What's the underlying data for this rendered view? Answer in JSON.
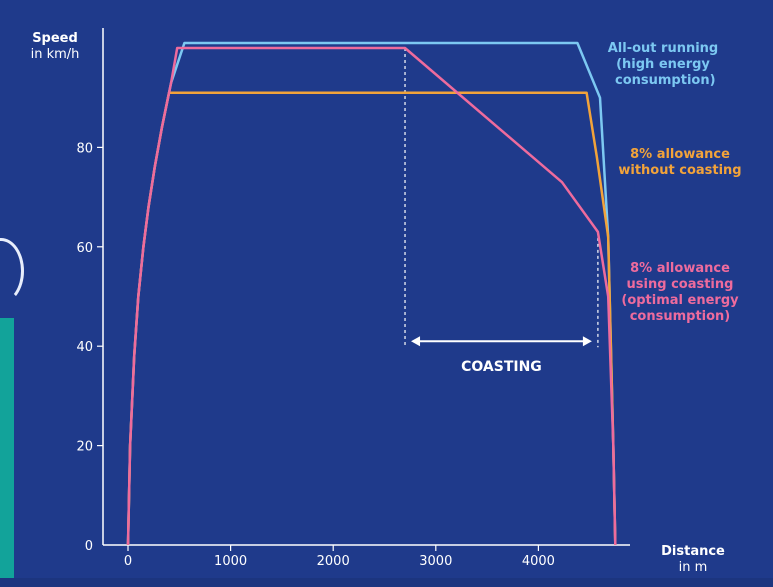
{
  "chart_data": {
    "type": "line",
    "xlabel": {
      "title": "Distance",
      "unit": "in m"
    },
    "ylabel": {
      "title": "Speed",
      "unit": "in km/h"
    },
    "xlim": [
      0,
      4800
    ],
    "ylim": [
      0,
      103
    ],
    "xticks": [
      0,
      1000,
      2000,
      3000,
      4000
    ],
    "yticks": [
      20,
      40,
      60,
      80
    ],
    "ytick_zero": "0",
    "grid": false,
    "legend": "inline labels at right",
    "series": [
      {
        "key": "allout",
        "label": [
          "All-out running",
          "(high energy",
          " consumption)"
        ],
        "color": "#7cc8f2",
        "x": [
          0,
          20,
          60,
          100,
          150,
          200,
          260,
          330,
          420,
          550,
          4380,
          4600,
          4680,
          4730,
          4750
        ],
        "y": [
          0,
          20,
          38,
          50,
          60,
          68,
          76,
          84,
          93,
          101,
          101,
          90,
          62,
          20,
          0
        ]
      },
      {
        "key": "allowance",
        "label": [
          "8% allowance",
          "without coasting"
        ],
        "color": "#f2a33a",
        "x": [
          0,
          20,
          60,
          100,
          150,
          200,
          260,
          330,
          400,
          4470,
          4570,
          4680,
          4730,
          4750
        ],
        "y": [
          0,
          20,
          38,
          50,
          60,
          68,
          76,
          84,
          91,
          91,
          78,
          62,
          20,
          0
        ]
      },
      {
        "key": "coasting",
        "label": [
          "8% allowance",
          "using coasting",
          "(optimal energy",
          "consumption)"
        ],
        "color": "#ee6b9d",
        "x": [
          0,
          20,
          60,
          100,
          150,
          200,
          260,
          330,
          420,
          480,
          2700,
          4230,
          4580,
          4680,
          4730,
          4750
        ],
        "y": [
          0,
          20,
          38,
          50,
          60,
          68,
          76,
          84,
          93,
          100,
          100,
          73,
          63,
          50,
          20,
          0
        ]
      }
    ],
    "annotations": [
      {
        "text": "COASTING",
        "type": "range-arrow",
        "x_start": 2700,
        "x_end": 4580,
        "y": 41
      }
    ],
    "colors": {
      "background": "#1f3a8b",
      "axis": "#ffffff",
      "text": "#ffffff"
    }
  }
}
